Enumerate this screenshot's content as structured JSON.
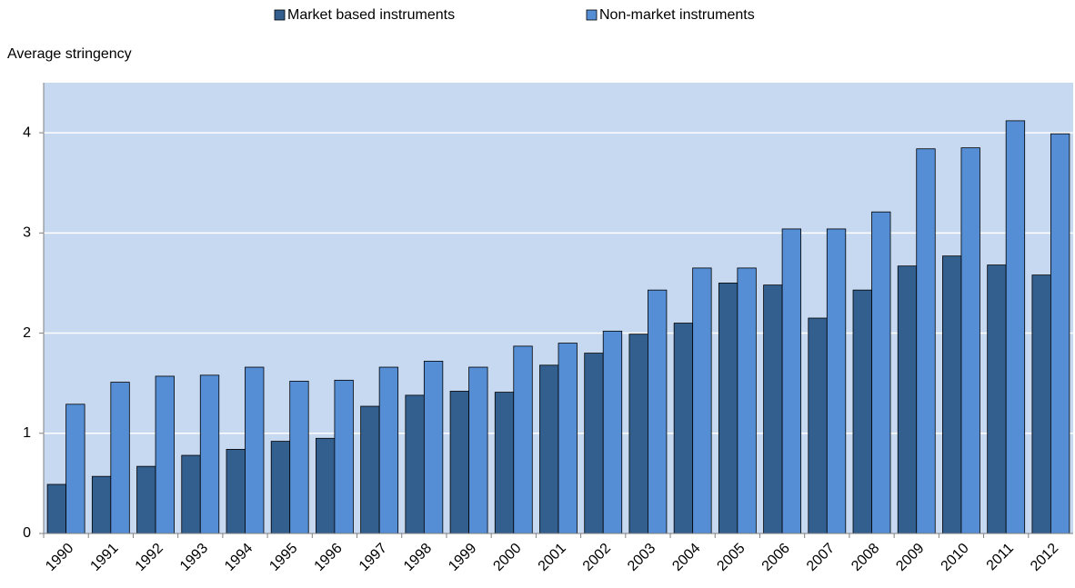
{
  "chart_data": {
    "type": "bar",
    "y_label": "Average stringency",
    "categories": [
      "1990",
      "1991",
      "1992",
      "1993",
      "1994",
      "1995",
      "1996",
      "1997",
      "1998",
      "1999",
      "2000",
      "2001",
      "2002",
      "2003",
      "2004",
      "2005",
      "2006",
      "2007",
      "2008",
      "2009",
      "2010",
      "2011",
      "2012"
    ],
    "series": [
      {
        "name": "Market based instruments",
        "color": "#335f8f",
        "values": [
          0.49,
          0.57,
          0.67,
          0.78,
          0.84,
          0.92,
          0.95,
          1.27,
          1.38,
          1.42,
          1.41,
          1.68,
          1.8,
          1.99,
          2.1,
          2.5,
          2.48,
          2.15,
          2.43,
          2.67,
          2.77,
          2.68,
          2.58
        ]
      },
      {
        "name": "Non-market instruments",
        "color": "#558ed5",
        "values": [
          1.29,
          1.51,
          1.57,
          1.58,
          1.66,
          1.52,
          1.53,
          1.66,
          1.72,
          1.66,
          1.87,
          1.9,
          2.02,
          2.43,
          2.65,
          2.65,
          3.04,
          3.04,
          3.21,
          3.84,
          3.85,
          4.12,
          3.99
        ]
      }
    ],
    "ylim": [
      0,
      4.5
    ],
    "yticks": [
      0,
      1,
      2,
      3,
      4
    ],
    "grid": true,
    "legend": "top"
  }
}
